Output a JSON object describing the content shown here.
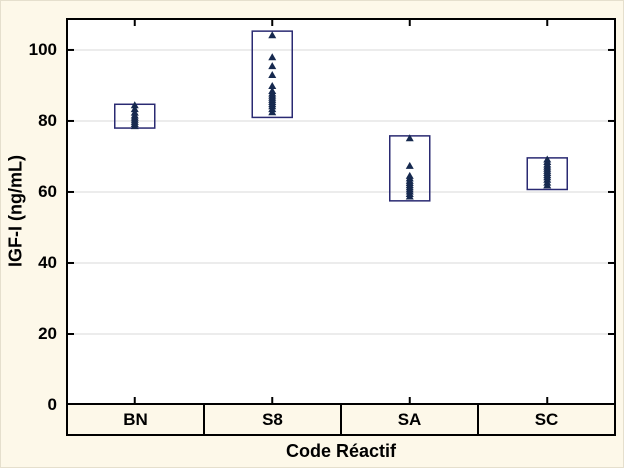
{
  "chart_data": {
    "type": "scatter",
    "title": "",
    "xlabel": "Code Réactif",
    "ylabel": "IGF-I (ng/mL)",
    "ylim": [
      0,
      109
    ],
    "yticks": [
      0,
      20,
      40,
      60,
      80,
      100
    ],
    "grid": true,
    "legend_position": "none",
    "marker": "triangle-up",
    "categories": [
      "BN",
      "S8",
      "SA",
      "SC"
    ],
    "groups": [
      {
        "category": "BN",
        "box_low": 78.0,
        "box_high": 84.7,
        "points": [
          84.3,
          83.2,
          82.2,
          81.4,
          80.8,
          80.2,
          79.6,
          79.0,
          78.4
        ]
      },
      {
        "category": "S8",
        "box_low": 81.0,
        "box_high": 105.3,
        "points": [
          104.0,
          97.8,
          95.3,
          92.8,
          89.7,
          88.3,
          87.6,
          87.0,
          86.4,
          85.8,
          85.2,
          84.6,
          84.0,
          83.2,
          82.3
        ]
      },
      {
        "category": "SA",
        "box_low": 57.5,
        "box_high": 75.8,
        "points": [
          75.0,
          67.2,
          64.4,
          63.7,
          63.0,
          62.4,
          61.8,
          61.2,
          60.6,
          60.0,
          59.3,
          58.6
        ]
      },
      {
        "category": "SC",
        "box_low": 60.7,
        "box_high": 69.6,
        "points": [
          69.0,
          68.3,
          67.6,
          67.0,
          66.4,
          65.8,
          65.2,
          64.6,
          64.0,
          63.3,
          62.5,
          61.7
        ]
      }
    ],
    "colors": {
      "background": "#fdf8e9",
      "plot_bg": "#ffffff",
      "grid": "#d9d9d9",
      "axis": "#000000",
      "box_border": "#2a2a72",
      "marker": "#16294f"
    }
  }
}
